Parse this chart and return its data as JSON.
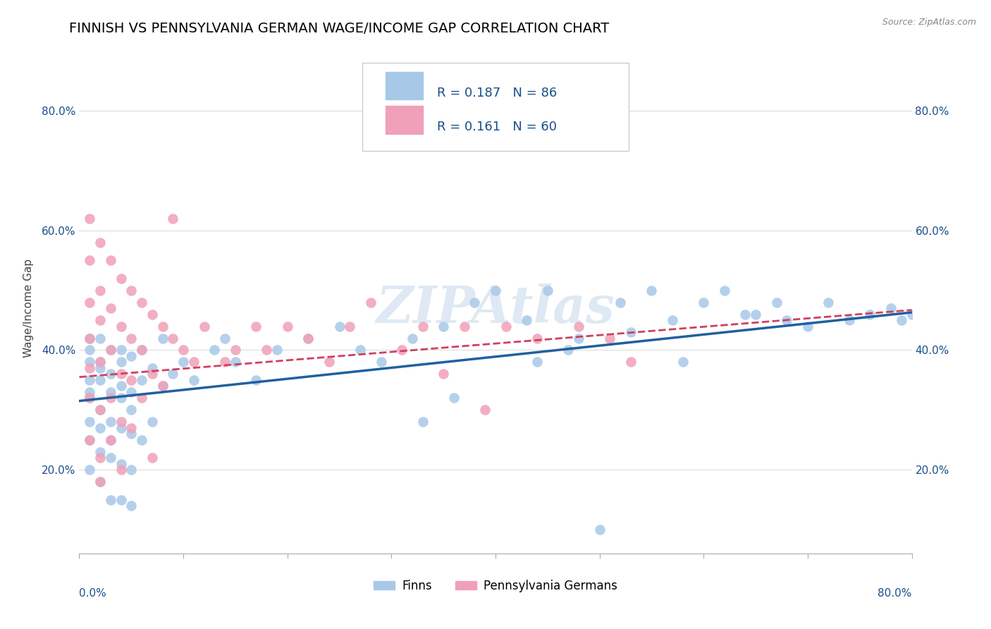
{
  "title": "FINNISH VS PENNSYLVANIA GERMAN WAGE/INCOME GAP CORRELATION CHART",
  "source": "Source: ZipAtlas.com",
  "ylabel": "Wage/Income Gap",
  "legend_label1": "Finns",
  "legend_label2": "Pennsylvania Germans",
  "r1": 0.187,
  "n1": 86,
  "r2": 0.161,
  "n2": 60,
  "color_blue": "#a8c8e8",
  "color_pink": "#f0a0b8",
  "color_blue_line": "#2060a0",
  "color_pink_line": "#d04060",
  "color_blue_text": "#1a4f8a",
  "bg_color": "#ffffff",
  "grid_color": "#dddddd",
  "watermark": "ZIPAtlas",
  "xmin": 0.0,
  "xmax": 0.8,
  "ymin": 0.06,
  "ymax": 0.88,
  "yticks": [
    0.2,
    0.4,
    0.6,
    0.8
  ],
  "ytick_labels": [
    "20.0%",
    "40.0%",
    "60.0%",
    "80.0%"
  ],
  "blue_intercept": 0.315,
  "blue_slope": 0.185,
  "pink_intercept": 0.355,
  "pink_slope": 0.14,
  "title_fontsize": 14,
  "axis_label_fontsize": 11,
  "tick_fontsize": 11,
  "watermark_fontsize": 52,
  "blue_x_raw": [
    0.01,
    0.01,
    0.01,
    0.01,
    0.01,
    0.01,
    0.01,
    0.01,
    0.01,
    0.02,
    0.02,
    0.02,
    0.02,
    0.02,
    0.02,
    0.02,
    0.02,
    0.03,
    0.03,
    0.03,
    0.03,
    0.03,
    0.03,
    0.03,
    0.04,
    0.04,
    0.04,
    0.04,
    0.04,
    0.04,
    0.04,
    0.05,
    0.05,
    0.05,
    0.05,
    0.05,
    0.05,
    0.06,
    0.06,
    0.06,
    0.07,
    0.07,
    0.08,
    0.08,
    0.09,
    0.1,
    0.11,
    0.13,
    0.14,
    0.15,
    0.17,
    0.19,
    0.22,
    0.25,
    0.27,
    0.29,
    0.32,
    0.35,
    0.38,
    0.4,
    0.43,
    0.45,
    0.48,
    0.5,
    0.52,
    0.55,
    0.57,
    0.6,
    0.62,
    0.65,
    0.68,
    0.7,
    0.72,
    0.74,
    0.76,
    0.78,
    0.79,
    0.8,
    0.33,
    0.36,
    0.44,
    0.47,
    0.53,
    0.58,
    0.64,
    0.67
  ],
  "blue_y_raw": [
    0.35,
    0.38,
    0.32,
    0.4,
    0.28,
    0.42,
    0.25,
    0.33,
    0.2,
    0.37,
    0.3,
    0.42,
    0.23,
    0.35,
    0.27,
    0.38,
    0.18,
    0.36,
    0.28,
    0.4,
    0.22,
    0.33,
    0.15,
    0.25,
    0.34,
    0.27,
    0.4,
    0.21,
    0.32,
    0.15,
    0.38,
    0.33,
    0.26,
    0.39,
    0.2,
    0.3,
    0.14,
    0.35,
    0.25,
    0.4,
    0.37,
    0.28,
    0.34,
    0.42,
    0.36,
    0.38,
    0.35,
    0.4,
    0.42,
    0.38,
    0.35,
    0.4,
    0.42,
    0.44,
    0.4,
    0.38,
    0.42,
    0.44,
    0.48,
    0.5,
    0.45,
    0.5,
    0.42,
    0.1,
    0.48,
    0.5,
    0.45,
    0.48,
    0.5,
    0.46,
    0.45,
    0.44,
    0.48,
    0.45,
    0.46,
    0.47,
    0.45,
    0.46,
    0.28,
    0.32,
    0.38,
    0.4,
    0.43,
    0.38,
    0.46,
    0.48
  ],
  "pink_x_raw": [
    0.01,
    0.01,
    0.01,
    0.01,
    0.01,
    0.01,
    0.01,
    0.02,
    0.02,
    0.02,
    0.02,
    0.02,
    0.02,
    0.02,
    0.03,
    0.03,
    0.03,
    0.03,
    0.03,
    0.04,
    0.04,
    0.04,
    0.04,
    0.04,
    0.05,
    0.05,
    0.05,
    0.05,
    0.06,
    0.06,
    0.06,
    0.07,
    0.07,
    0.08,
    0.08,
    0.09,
    0.1,
    0.11,
    0.12,
    0.14,
    0.15,
    0.17,
    0.18,
    0.2,
    0.22,
    0.24,
    0.26,
    0.28,
    0.31,
    0.33,
    0.35,
    0.37,
    0.39,
    0.41,
    0.44,
    0.48,
    0.51,
    0.53,
    0.07,
    0.09
  ],
  "pink_y_raw": [
    0.62,
    0.55,
    0.48,
    0.42,
    0.37,
    0.32,
    0.25,
    0.58,
    0.5,
    0.45,
    0.38,
    0.3,
    0.22,
    0.18,
    0.55,
    0.47,
    0.4,
    0.32,
    0.25,
    0.52,
    0.44,
    0.36,
    0.28,
    0.2,
    0.5,
    0.42,
    0.35,
    0.27,
    0.48,
    0.4,
    0.32,
    0.46,
    0.36,
    0.44,
    0.34,
    0.42,
    0.4,
    0.38,
    0.44,
    0.38,
    0.4,
    0.44,
    0.4,
    0.44,
    0.42,
    0.38,
    0.44,
    0.48,
    0.4,
    0.44,
    0.36,
    0.44,
    0.3,
    0.44,
    0.42,
    0.44,
    0.42,
    0.38,
    0.22,
    0.62
  ]
}
